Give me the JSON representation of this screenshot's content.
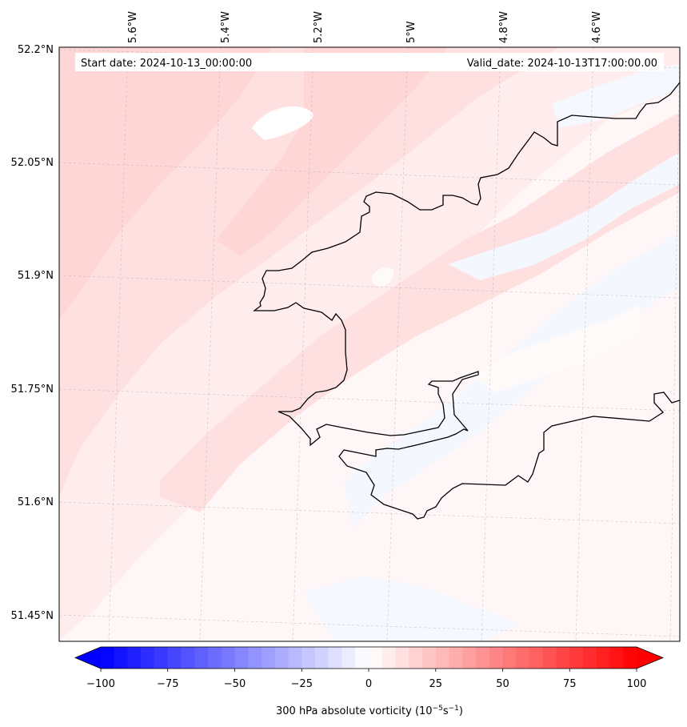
{
  "map": {
    "start_label": "Start date: 2024-10-13_00:00:00",
    "valid_label": "Valid_date: 2024-10-13T17:00:00.00",
    "lat_labels": [
      "52.2°N",
      "52.05°N",
      "51.9°N",
      "51.75°N",
      "51.6°N",
      "51.45°N"
    ],
    "lon_labels": [
      "5.6°W",
      "5.4°W",
      "5.2°W",
      "5°W",
      "4.8°W",
      "4.6°W"
    ]
  },
  "colorbar": {
    "title_main": "300 hPa absolute vorticity (10",
    "title_exp1": "−5",
    "title_unit": "s",
    "title_exp2": "−1",
    "title_close": ")",
    "tick_labels": [
      "−100",
      "−75",
      "−50",
      "−25",
      "0",
      "25",
      "50",
      "75",
      "100"
    ],
    "min": -100,
    "max": 100,
    "step": 5,
    "neg_color": "#0000ff",
    "pos_color": "#ff0000"
  }
}
